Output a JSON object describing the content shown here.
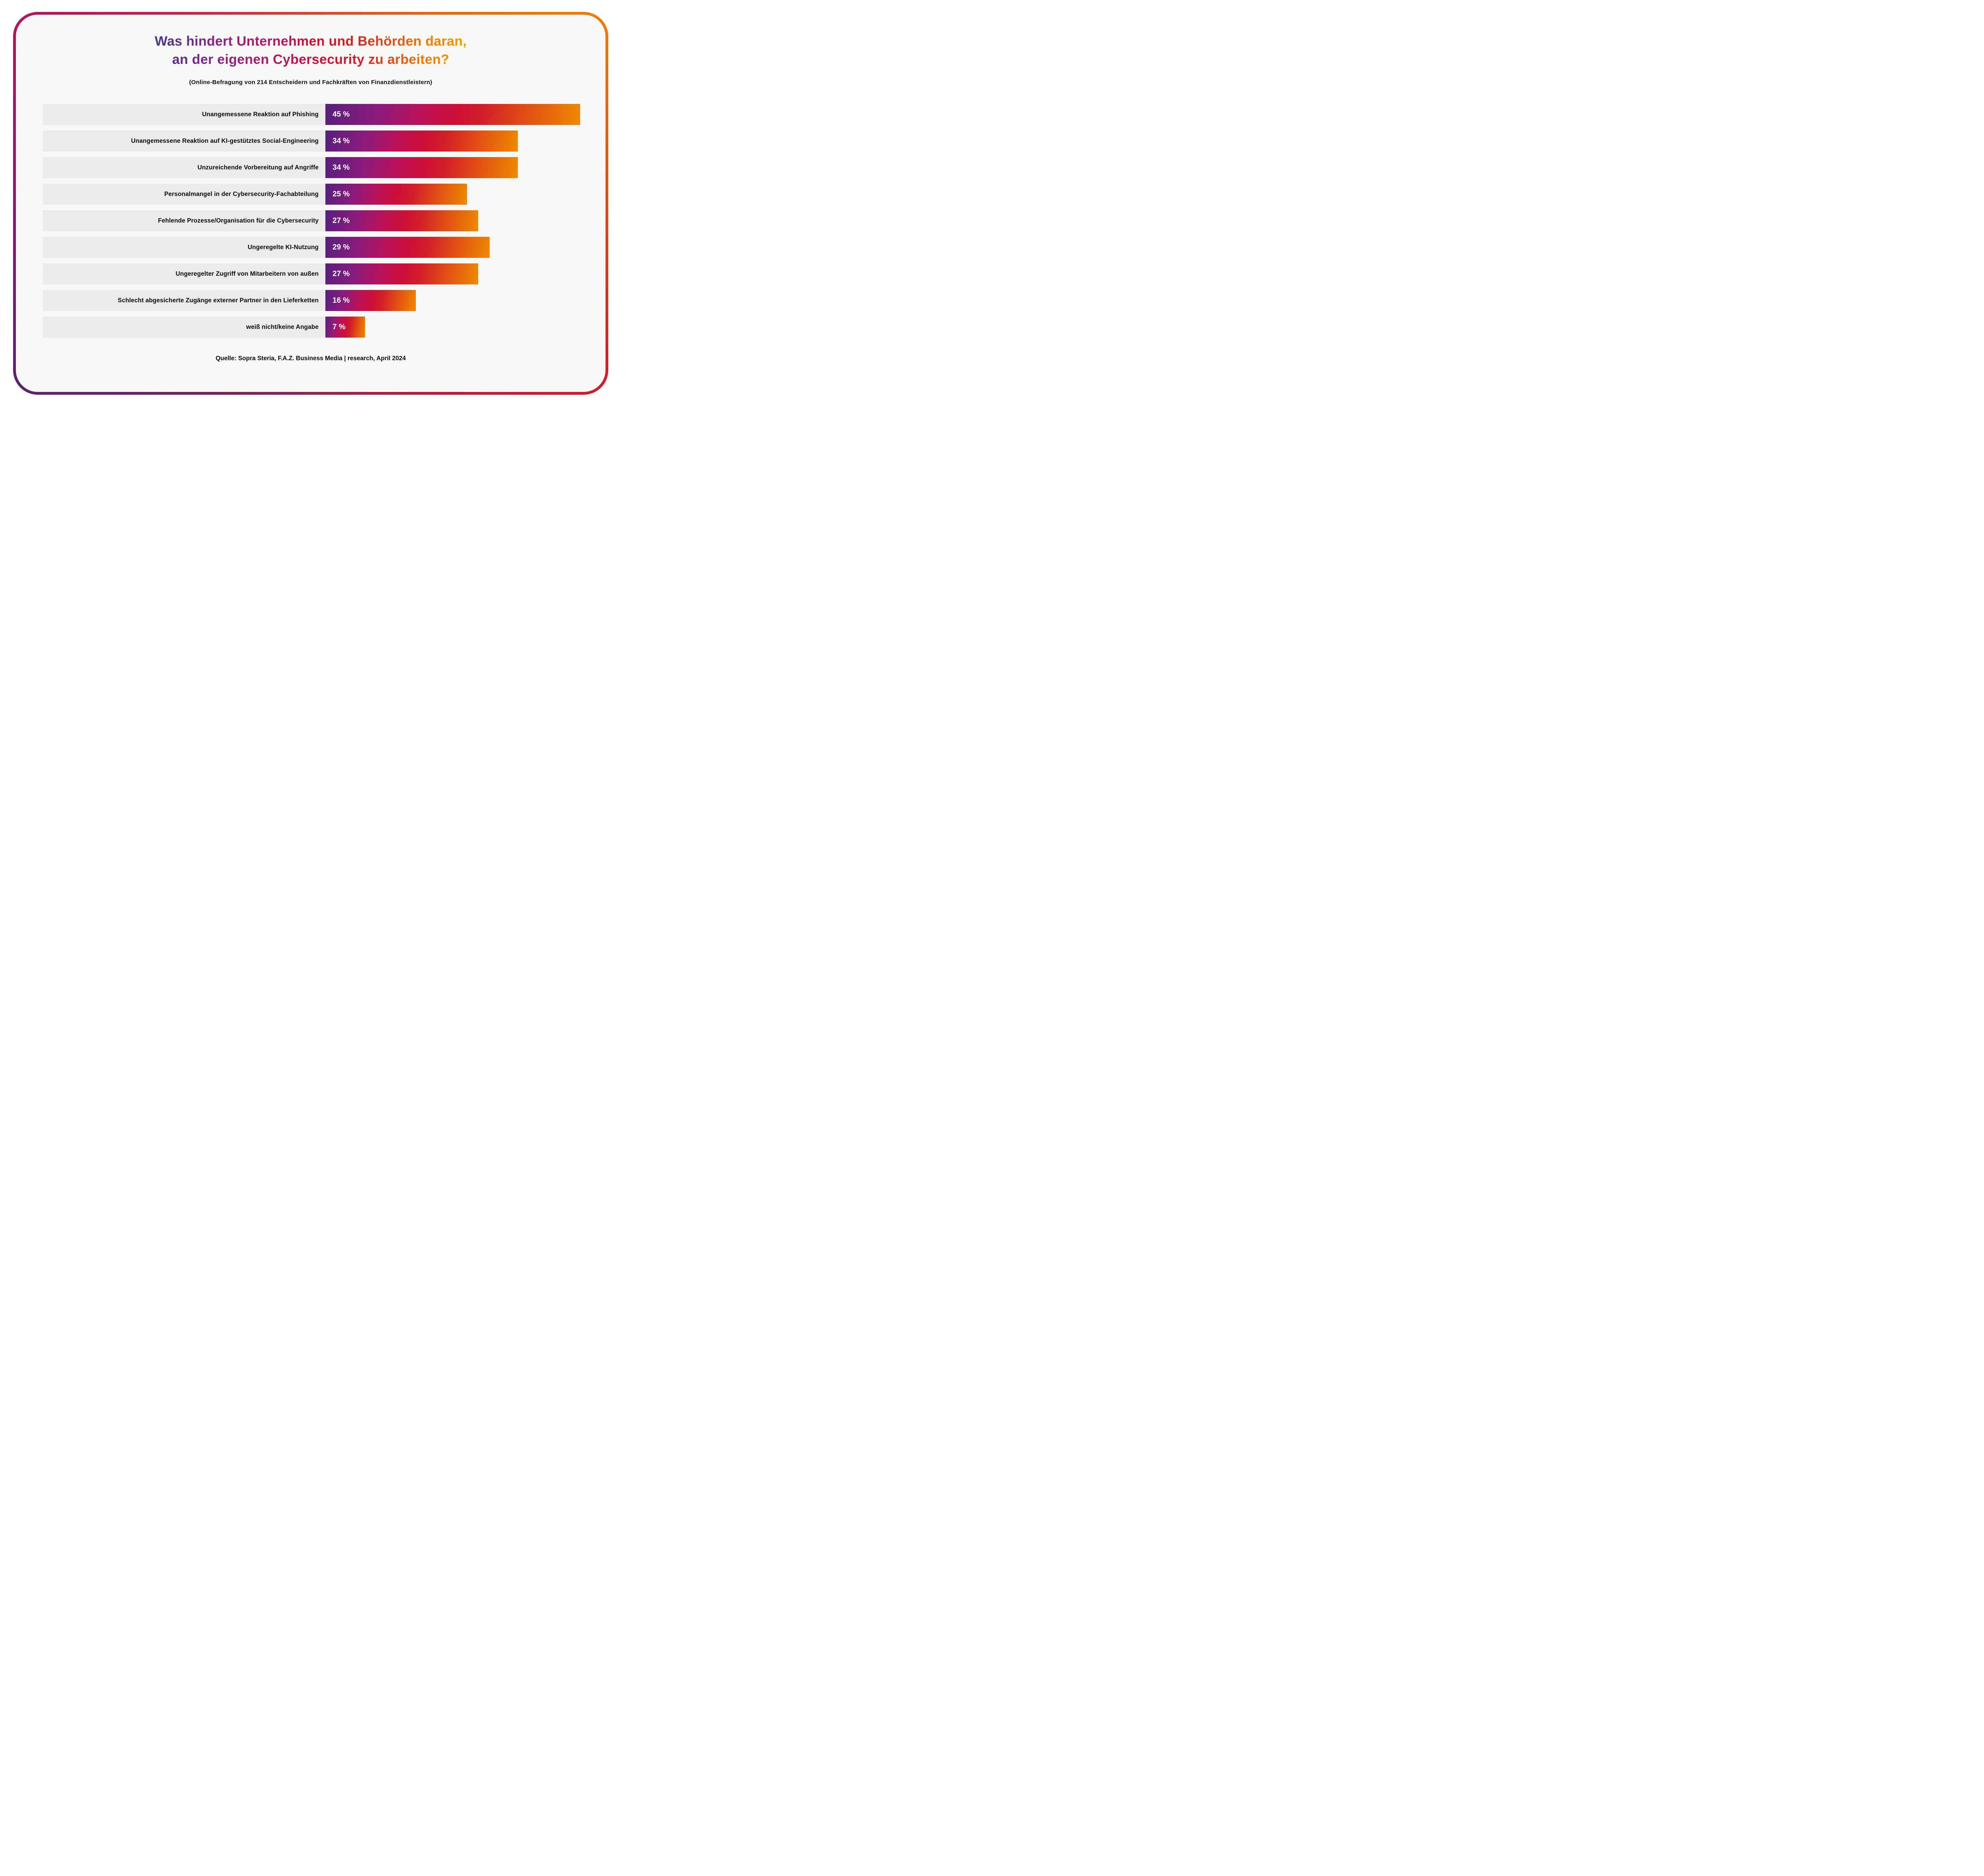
{
  "header": {
    "title_line1": "Was hindert Unternehmen und Behörden daran,",
    "title_line2": "an der eigenen Cybersecurity zu arbeiten?",
    "subtitle": "(Online-Befragung von 214 Entscheidern und Fachkräften von Finanzdienstleistern)"
  },
  "footer": {
    "source": "Quelle: Sopra Steria, F.A.Z. Business Media | research, April 2024"
  },
  "colors": {
    "border_top_left": "#B5135B",
    "border_top_right": "#EE7D00",
    "border_bottom_right": "#D2192D",
    "border_bottom_left": "#5B2172",
    "bar_gradient_start": "#571F7E",
    "bar_gradient_mid": "#CF0F36",
    "bar_gradient_end": "#EE8A00",
    "title_gradient_start": "#45388B",
    "title_gradient_end": "#F39E00",
    "card_background": "#F7F7F6",
    "row_label_background": "#EBEBEC",
    "label_text": "#0B0B0B",
    "value_text": "#FFFFFF",
    "page_background": "#FFFFFF"
  },
  "chart_data": {
    "type": "bar",
    "orientation": "horizontal",
    "title": "Was hindert Unternehmen und Behörden daran, an der eigenen Cybersecurity zu arbeiten?",
    "subtitle": "(Online-Befragung von 214 Entscheidern und Fachkräften von Finanzdienstleistern)",
    "unit": "%",
    "xlim": [
      0,
      47
    ],
    "grid": false,
    "legend": false,
    "categories": [
      "Unangemessene Reaktion auf Phishing",
      "Unangemessene Reaktion auf KI-gestütztes Social-Engineering",
      "Unzureichende Vorbereitung auf Angriffe",
      "Personalmangel in der Cybersecurity-Fachabteilung",
      "Fehlende Prozesse/Organisation für die Cybersecurity",
      "Ungeregelte KI-Nutzung",
      "Ungeregelter Zugriff von Mitarbeitern von außen",
      "Schlecht abgesicherte Zugänge externer Partner in den Lieferketten",
      "weiß nicht/keine Angabe"
    ],
    "values": [
      45,
      34,
      34,
      25,
      27,
      29,
      27,
      16,
      7
    ],
    "value_labels": [
      "45 %",
      "34 %",
      "34 %",
      "25 %",
      "27 %",
      "29 %",
      "27 %",
      "16 %",
      "7 %"
    ],
    "source": "Quelle: Sopra Steria, F.A.Z. Business Media | research, April 2024"
  }
}
